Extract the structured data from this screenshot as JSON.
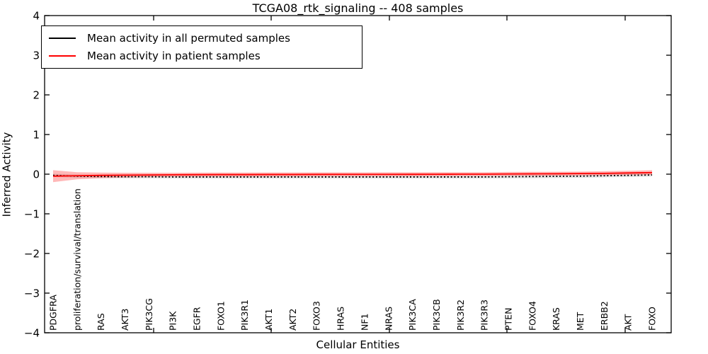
{
  "title": "TCGA08_rtk_signaling -- 408 samples",
  "axes": {
    "ylabel": "Inferred Activity",
    "xlabel": "Cellular Entities",
    "ytick_labels": [
      "4",
      "3",
      "2",
      "1",
      "0",
      "−1",
      "−2",
      "−3",
      "−4"
    ]
  },
  "legend": {
    "items": [
      {
        "label": "Mean activity in all permuted samples",
        "color": "#000000"
      },
      {
        "label": "Mean activity in patient samples",
        "color": "#ff0000"
      }
    ]
  },
  "chart_data": {
    "type": "line",
    "title": "TCGA08_rtk_signaling -- 408 samples",
    "xlabel": "Cellular Entities",
    "ylabel": "Inferred Activity",
    "ylim": [
      -4,
      4
    ],
    "ytick_values": [
      4,
      3,
      2,
      1,
      0,
      -1,
      -2,
      -3,
      -4
    ],
    "grid": false,
    "legend_position": "upper-left",
    "categories": [
      "PDGFRA",
      "proliferation/survival/translation",
      "RAS",
      "AKT3",
      "PIK3CG",
      "PI3K",
      "EGFR",
      "FOXO1",
      "PIK3R1",
      "AKT1",
      "AKT2",
      "FOXO3",
      "HRAS",
      "NF1",
      "NRAS",
      "PIK3CA",
      "PIK3CB",
      "PIK3R2",
      "PIK3R3",
      "PTEN",
      "FOXO4",
      "KRAS",
      "MET",
      "ERBB2",
      "AKT",
      "FOXO"
    ],
    "series": [
      {
        "name": "Mean activity in all permuted samples",
        "color": "#000000",
        "style": "dotted",
        "band_color": "rgba(100,100,100,0.18)",
        "values": [
          -0.03,
          -0.05,
          -0.06,
          -0.065,
          -0.065,
          -0.07,
          -0.07,
          -0.07,
          -0.07,
          -0.07,
          -0.07,
          -0.07,
          -0.07,
          -0.07,
          -0.07,
          -0.07,
          -0.07,
          -0.07,
          -0.07,
          -0.065,
          -0.06,
          -0.055,
          -0.05,
          -0.04,
          -0.03,
          -0.02
        ],
        "band": [
          0.04,
          0.04,
          0.04,
          0.04,
          0.04,
          0.04,
          0.04,
          0.04,
          0.04,
          0.04,
          0.04,
          0.04,
          0.04,
          0.04,
          0.04,
          0.04,
          0.04,
          0.04,
          0.04,
          0.04,
          0.04,
          0.04,
          0.04,
          0.04,
          0.04,
          0.04
        ]
      },
      {
        "name": "Mean activity in patient samples",
        "color": "#ff0000",
        "style": "solid",
        "band_color": "rgba(255,0,0,0.28)",
        "values": [
          -0.05,
          -0.04,
          -0.03,
          -0.025,
          -0.02,
          -0.015,
          -0.012,
          -0.01,
          -0.01,
          -0.008,
          -0.008,
          -0.006,
          -0.005,
          -0.005,
          -0.004,
          -0.003,
          -0.002,
          0.0,
          0.0,
          0.005,
          0.008,
          0.01,
          0.015,
          0.02,
          0.03,
          0.04
        ],
        "band": [
          0.15,
          0.09,
          0.07,
          0.06,
          0.055,
          0.05,
          0.05,
          0.05,
          0.05,
          0.05,
          0.05,
          0.05,
          0.05,
          0.05,
          0.05,
          0.05,
          0.05,
          0.05,
          0.05,
          0.05,
          0.05,
          0.05,
          0.05,
          0.055,
          0.055,
          0.06
        ]
      }
    ]
  }
}
